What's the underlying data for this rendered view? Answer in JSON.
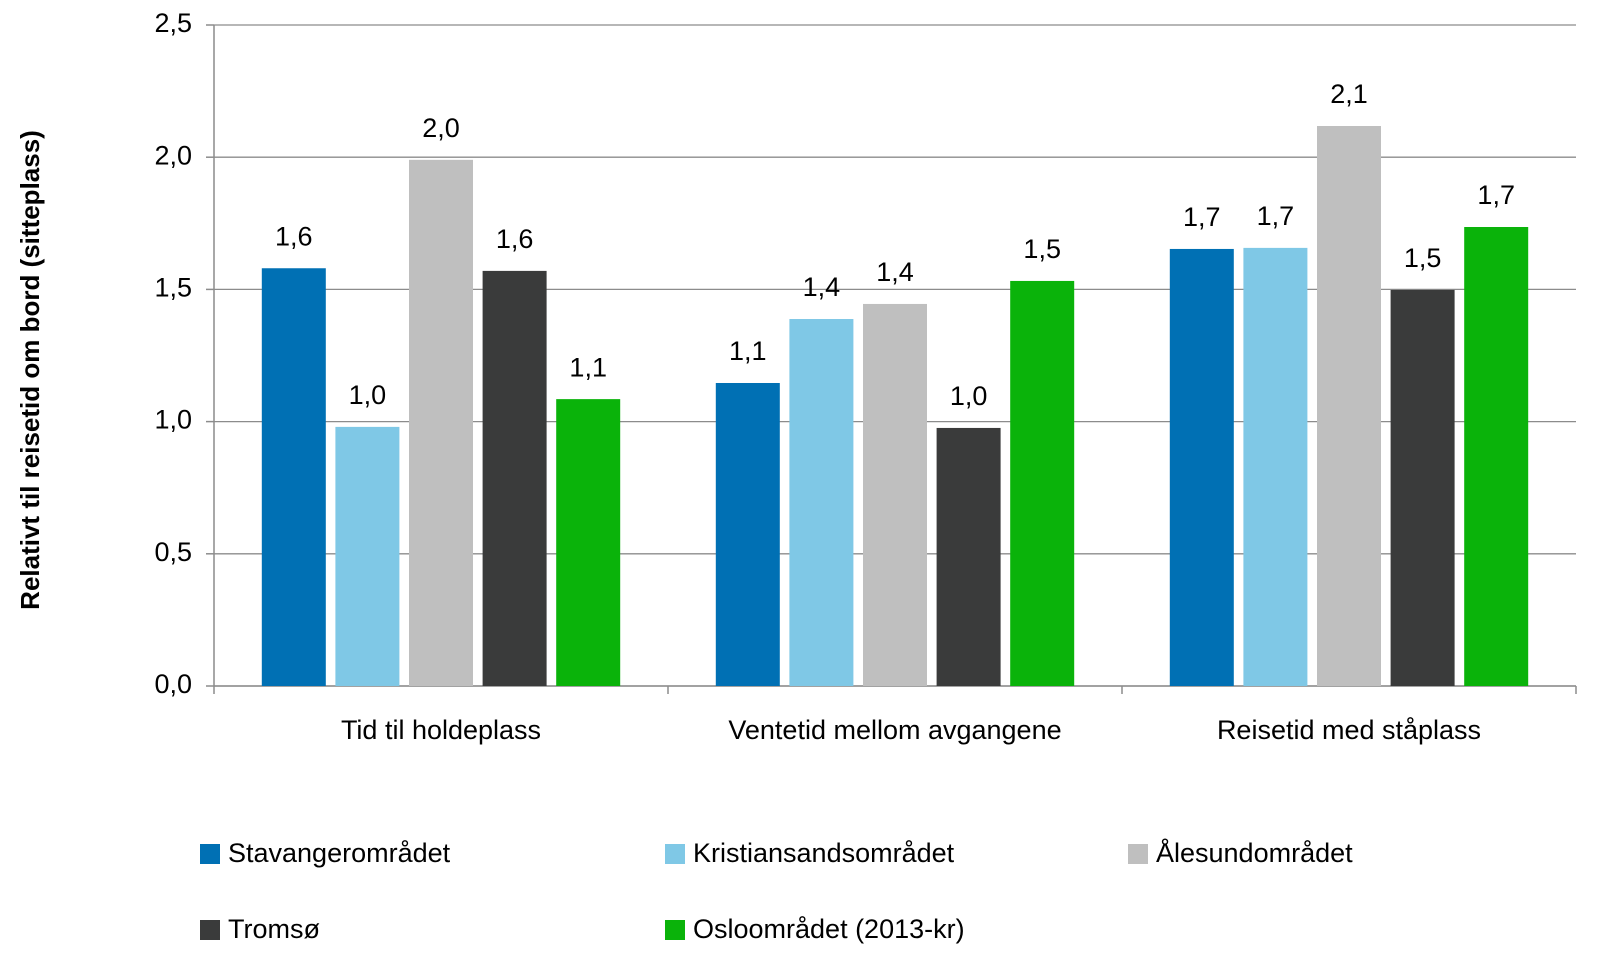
{
  "chart_data": {
    "type": "bar",
    "y_label": "Relativt til reisetid om bord (sitteplass)",
    "categories": [
      "Tid til holdeplass",
      "Ventetid mellom avgangene",
      "Reisetid med ståplass"
    ],
    "series": [
      {
        "name": "Stavangerområdet",
        "color": "#0070b4",
        "values": [
          1.58,
          1.146,
          1.653
        ],
        "value_labels": [
          "1,6",
          "1,1",
          "1,7"
        ]
      },
      {
        "name": "Kristiansandsområdet",
        "color": "#7fc8e6",
        "values": [
          0.98,
          1.388,
          1.657
        ],
        "value_labels": [
          "1,0",
          "1,4",
          "1,7"
        ]
      },
      {
        "name": "Ålesundområdet",
        "color": "#bfbfbf",
        "values": [
          1.99,
          1.445,
          2.118
        ],
        "value_labels": [
          "2,0",
          "1,4",
          "2,1"
        ]
      },
      {
        "name": "Tromsø",
        "color": "#3a3b3b",
        "values": [
          1.57,
          0.976,
          1.498
        ],
        "value_labels": [
          "1,6",
          "1,0",
          "1,5"
        ]
      },
      {
        "name": "Osloområdet (2013-kr)",
        "color": "#0ab30a",
        "values": [
          1.085,
          1.532,
          1.736
        ],
        "value_labels": [
          "1,1",
          "1,5",
          "1,7"
        ]
      }
    ],
    "ylim": [
      0,
      2.5
    ],
    "yticks": [
      {
        "value": 0,
        "label": "0,0"
      },
      {
        "value": 0.5,
        "label": "0,5"
      },
      {
        "value": 1,
        "label": "1,0"
      },
      {
        "value": 1.5,
        "label": "1,5"
      },
      {
        "value": 2,
        "label": "2,0"
      },
      {
        "value": 2.5,
        "label": "2,5"
      }
    ],
    "grid": true,
    "legend": "bottom"
  }
}
